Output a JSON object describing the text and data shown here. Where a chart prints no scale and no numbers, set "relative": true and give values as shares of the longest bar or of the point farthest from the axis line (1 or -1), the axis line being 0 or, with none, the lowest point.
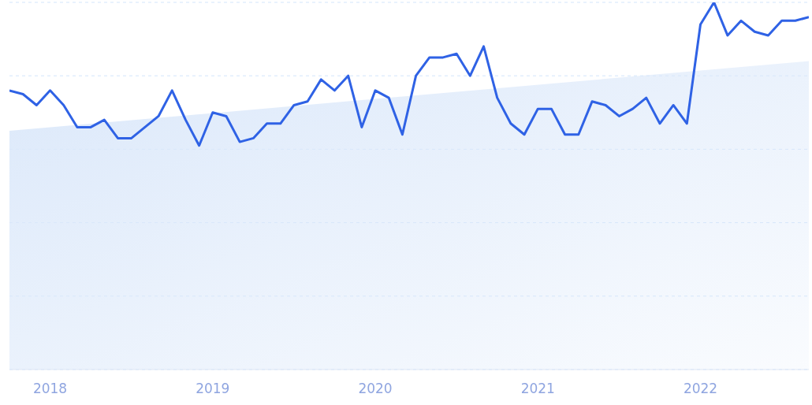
{
  "chart_data": {
    "type": "line",
    "relative": true,
    "grid": "y",
    "xlim": [
      "2017-10",
      "2022-09"
    ],
    "xticks": [
      "2018",
      "2019",
      "2020",
      "2021",
      "2022"
    ],
    "series": [
      {
        "type": "area",
        "color": "#dbe8fa",
        "x": [
          "2017-10",
          "2022-09"
        ],
        "values": [
          0.65,
          0.84
        ]
      },
      {
        "color": "#2f62e5",
        "x": [
          "2017-10",
          "2017-11",
          "2017-12",
          "2018-01",
          "2018-02",
          "2018-03",
          "2018-04",
          "2018-05",
          "2018-06",
          "2018-07",
          "2018-08",
          "2018-09",
          "2018-10",
          "2018-11",
          "2018-12",
          "2019-01",
          "2019-02",
          "2019-03",
          "2019-04",
          "2019-05",
          "2019-06",
          "2019-07",
          "2019-08",
          "2019-09",
          "2019-10",
          "2019-11",
          "2019-12",
          "2020-01",
          "2020-02",
          "2020-03",
          "2020-04",
          "2020-05",
          "2020-06",
          "2020-07",
          "2020-08",
          "2020-09",
          "2020-10",
          "2020-11",
          "2020-12",
          "2021-01",
          "2021-02",
          "2021-03",
          "2021-04",
          "2021-05",
          "2021-06",
          "2021-07",
          "2021-08",
          "2021-09",
          "2021-10",
          "2021-11",
          "2021-12",
          "2022-01",
          "2022-02",
          "2022-03",
          "2022-04",
          "2022-05",
          "2022-06",
          "2022-07",
          "2022-08",
          "2022-09"
        ],
        "values": [
          0.76,
          0.75,
          0.72,
          0.76,
          0.72,
          0.66,
          0.66,
          0.68,
          0.63,
          0.63,
          0.66,
          0.69,
          0.76,
          0.68,
          0.61,
          0.7,
          0.69,
          0.62,
          0.63,
          0.67,
          0.67,
          0.72,
          0.73,
          0.79,
          0.76,
          0.8,
          0.66,
          0.76,
          0.74,
          0.64,
          0.8,
          0.85,
          0.85,
          0.86,
          0.8,
          0.88,
          0.74,
          0.67,
          0.64,
          0.71,
          0.71,
          0.64,
          0.64,
          0.73,
          0.72,
          0.69,
          0.71,
          0.74,
          0.67,
          0.72,
          0.67,
          0.94,
          1.0,
          0.91,
          0.95,
          0.92,
          0.91,
          0.95,
          0.95,
          0.96
        ]
      }
    ]
  }
}
